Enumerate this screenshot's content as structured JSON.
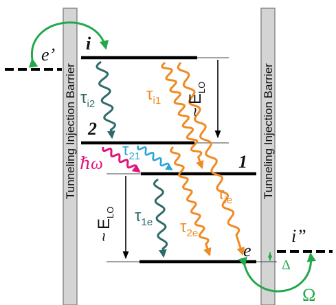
{
  "barriers": {
    "left_label": "Tunneling Injection Barrier",
    "right_label": "Tunneling Injection Barrier"
  },
  "levels": {
    "i": "i",
    "two": "2",
    "one": "1",
    "e": "e",
    "e_prime": "e’",
    "i_double_prime": "i”"
  },
  "energies": {
    "elo_top": {
      "tilde": "~",
      "E": "E",
      "sub": "LO"
    },
    "elo_bottom": {
      "tilde": "~",
      "E": "E",
      "sub": "LO"
    },
    "delta": "Δ",
    "omega_big": "Ω",
    "hbar_omega": "ℏω"
  },
  "lifetimes": {
    "i2": {
      "tau": "τ",
      "sub": "i2"
    },
    "i1": {
      "tau": "τ",
      "sub": "i1"
    },
    "t21": {
      "tau": "τ",
      "sub": "21"
    },
    "t1e": {
      "tau": "τ",
      "sub": "1e"
    },
    "t2e": {
      "tau": "τ",
      "sub": "2e"
    },
    "tie": {
      "tau": "τ",
      "sub": "ie"
    }
  },
  "colors": {
    "teal": "#2f6b6b",
    "orange": "#f08a24",
    "blue": "#2aa3d6",
    "magenta": "#e2137a",
    "green": "#22a84a",
    "barrier": "#d4d4d4"
  }
}
